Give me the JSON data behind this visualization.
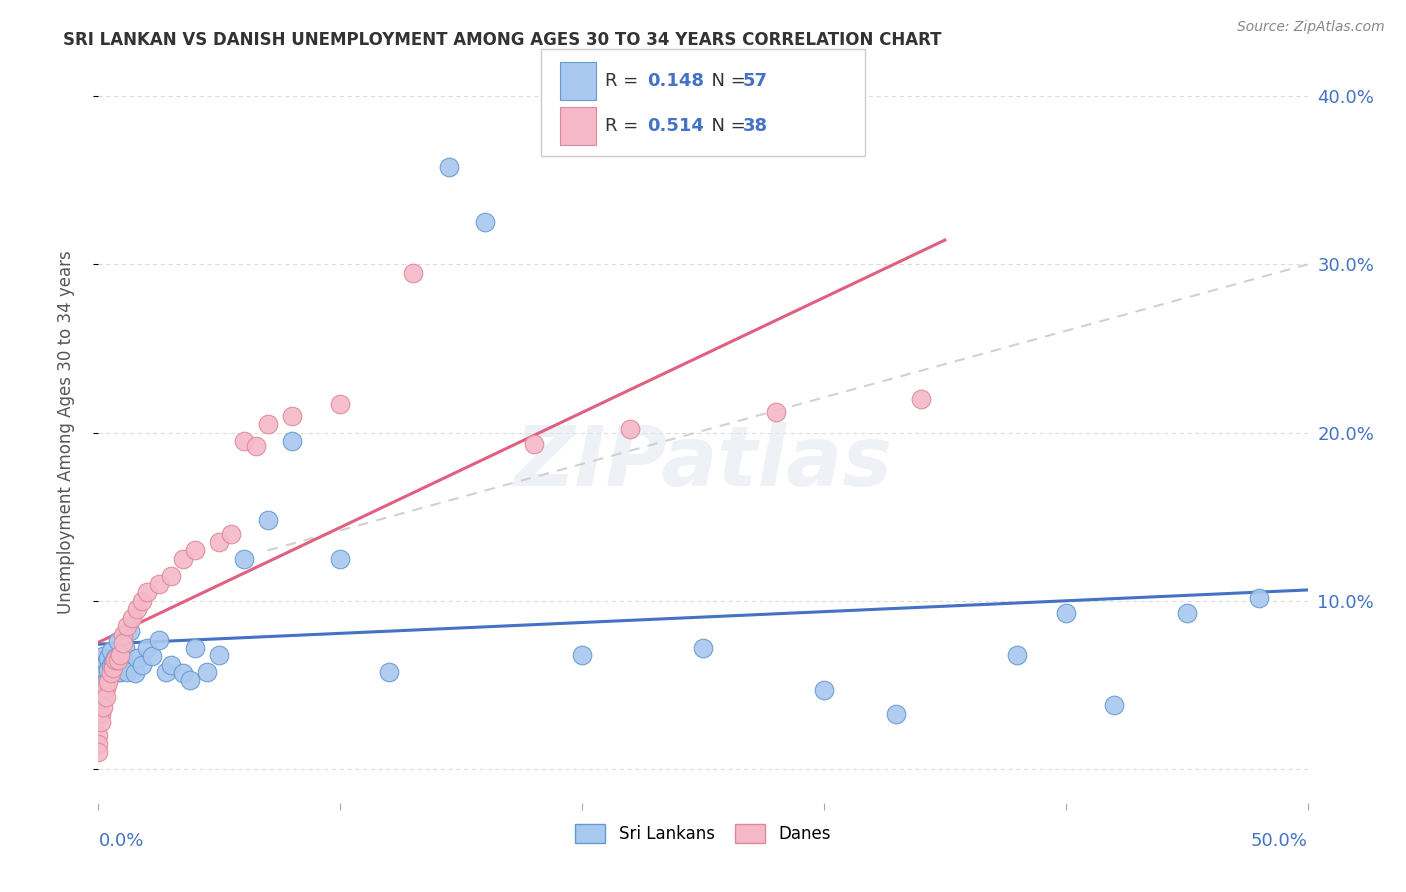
{
  "title": "SRI LANKAN VS DANISH UNEMPLOYMENT AMONG AGES 30 TO 34 YEARS CORRELATION CHART",
  "source": "Source: ZipAtlas.com",
  "ylabel": "Unemployment Among Ages 30 to 34 years",
  "right_ytick_labels": [
    "",
    "10.0%",
    "20.0%",
    "30.0%",
    "40.0%"
  ],
  "right_ytick_vals": [
    0.0,
    0.1,
    0.2,
    0.3,
    0.4
  ],
  "xmin": 0.0,
  "xmax": 0.5,
  "ymin": -0.02,
  "ymax": 0.42,
  "sri_lankan_color": "#A8C8F0",
  "sri_lankan_edge_color": "#6699CC",
  "danish_color": "#F5B8C8",
  "danish_edge_color": "#DD8899",
  "sri_lankan_R": 0.148,
  "sri_lankan_N": 57,
  "danish_R": 0.514,
  "danish_N": 38,
  "sri_lankan_line_color": "#4472C4",
  "danish_line_color": "#E06080",
  "dash_line_color": "#CCCCCC",
  "background_color": "#FFFFFF",
  "grid_color": "#DDDDDD",
  "watermark": "ZIPatlas",
  "sl_x": [
    0.0,
    0.0,
    0.0,
    0.001,
    0.001,
    0.001,
    0.002,
    0.002,
    0.002,
    0.003,
    0.003,
    0.003,
    0.004,
    0.004,
    0.005,
    0.005,
    0.006,
    0.006,
    0.007,
    0.007,
    0.008,
    0.008,
    0.009,
    0.01,
    0.01,
    0.011,
    0.012,
    0.013,
    0.015,
    0.016,
    0.018,
    0.02,
    0.022,
    0.025,
    0.028,
    0.03,
    0.035,
    0.038,
    0.04,
    0.045,
    0.05,
    0.06,
    0.07,
    0.08,
    0.1,
    0.12,
    0.145,
    0.16,
    0.2,
    0.25,
    0.3,
    0.33,
    0.38,
    0.4,
    0.42,
    0.45,
    0.48
  ],
  "sl_y": [
    0.065,
    0.06,
    0.055,
    0.062,
    0.058,
    0.053,
    0.067,
    0.06,
    0.054,
    0.063,
    0.058,
    0.052,
    0.066,
    0.059,
    0.07,
    0.062,
    0.063,
    0.058,
    0.066,
    0.061,
    0.076,
    0.058,
    0.058,
    0.066,
    0.062,
    0.072,
    0.058,
    0.082,
    0.057,
    0.066,
    0.062,
    0.072,
    0.067,
    0.077,
    0.058,
    0.062,
    0.057,
    0.053,
    0.072,
    0.058,
    0.068,
    0.125,
    0.148,
    0.195,
    0.125,
    0.058,
    0.358,
    0.325,
    0.068,
    0.072,
    0.047,
    0.033,
    0.068,
    0.093,
    0.038,
    0.093,
    0.102
  ],
  "dn_x": [
    0.0,
    0.0,
    0.0,
    0.001,
    0.001,
    0.002,
    0.002,
    0.003,
    0.003,
    0.004,
    0.005,
    0.006,
    0.007,
    0.008,
    0.009,
    0.01,
    0.01,
    0.012,
    0.014,
    0.016,
    0.018,
    0.02,
    0.025,
    0.03,
    0.035,
    0.04,
    0.05,
    0.055,
    0.06,
    0.065,
    0.07,
    0.08,
    0.1,
    0.13,
    0.18,
    0.22,
    0.28,
    0.34
  ],
  "dn_y": [
    0.02,
    0.015,
    0.01,
    0.033,
    0.028,
    0.042,
    0.037,
    0.048,
    0.043,
    0.052,
    0.057,
    0.06,
    0.065,
    0.065,
    0.068,
    0.08,
    0.075,
    0.085,
    0.09,
    0.095,
    0.1,
    0.105,
    0.11,
    0.115,
    0.125,
    0.13,
    0.135,
    0.14,
    0.195,
    0.192,
    0.205,
    0.21,
    0.217,
    0.295,
    0.193,
    0.202,
    0.212,
    0.22
  ]
}
